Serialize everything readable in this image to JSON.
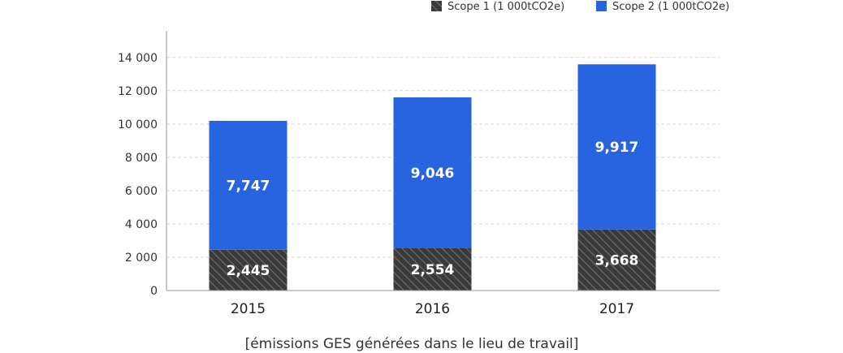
{
  "chart_data": {
    "type": "bar",
    "stacked": true,
    "categories": [
      "2015",
      "2016",
      "2017"
    ],
    "series": [
      {
        "name": "Scope 1 (1 000tCO2e)",
        "values": [
          2445,
          2554,
          3668
        ],
        "value_labels": [
          "2,445",
          "2,554",
          "3,668"
        ],
        "color": "#3a3a3a",
        "pattern": "diagonal-hatch"
      },
      {
        "name": "Scope 2 (1 000tCO2e)",
        "values": [
          7747,
          9046,
          9917
        ],
        "value_labels": [
          "7,747",
          "9,046",
          "9,917"
        ],
        "color": "#2964e0"
      }
    ],
    "ylim": [
      0,
      15500
    ],
    "yticks": [
      0,
      2000,
      4000,
      6000,
      8000,
      10000,
      12000,
      14000
    ],
    "ytick_labels": [
      "0",
      "2 000",
      "4 000",
      "6 000",
      "8 000",
      "10 000",
      "12 000",
      "14 000"
    ],
    "grid": "horizontal-dashed",
    "legend_position": "top-right",
    "caption": "[émissions GES générées dans le lieu de travail]",
    "xlabel": "",
    "ylabel": ""
  }
}
